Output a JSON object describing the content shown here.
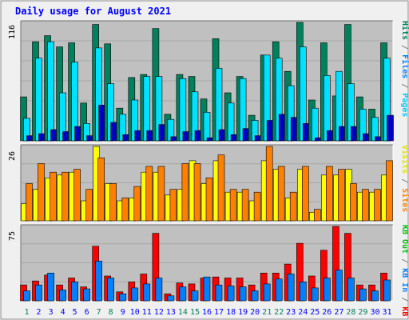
{
  "chart_data": {
    "type": "bar",
    "title": "Daily usage for August 2021",
    "days": [
      "1",
      "2",
      "3",
      "4",
      "5",
      "6",
      "7",
      "8",
      "9",
      "10",
      "11",
      "12",
      "13",
      "14",
      "15",
      "16",
      "17",
      "18",
      "19",
      "20",
      "21",
      "22",
      "23",
      "24",
      "25",
      "26",
      "27",
      "28",
      "29",
      "30",
      "31"
    ],
    "weekend_days": [
      "1",
      "7",
      "8",
      "14",
      "15",
      "21",
      "22",
      "28",
      "29"
    ],
    "panels": [
      {
        "id": "hits",
        "ymax": 116,
        "ymax_label": "116",
        "series": [
          {
            "name": "Hits",
            "color": "#00805c",
            "values": [
              43,
              97,
              103,
              92,
              96,
              37,
              114,
              95,
              32,
              62,
              65,
              110,
              26,
              65,
              63,
              41,
              100,
              47,
              63,
              25,
              84,
              97,
              68,
              116,
              40,
              96,
              44,
              114,
              43,
              31,
              96
            ]
          },
          {
            "name": "Files",
            "color": "#00e0ff",
            "values": [
              22,
              81,
              97,
              47,
              77,
              17,
              91,
              56,
              26,
              40,
              63,
              63,
              21,
              61,
              48,
              28,
              71,
              37,
              61,
              20,
              84,
              81,
              54,
              92,
              32,
              64,
              68,
              56,
              31,
              23,
              81
            ]
          },
          {
            "name": "Pages",
            "color": "#0000c0",
            "values": [
              5,
              7,
              11,
              9,
              14,
              5,
              35,
              18,
              6,
              10,
              10,
              16,
              4,
              9,
              10,
              3,
              11,
              6,
              12,
              5,
              20,
              26,
              23,
              17,
              3,
              10,
              14,
              14,
              7,
              4,
              25
            ]
          }
        ]
      },
      {
        "id": "visits",
        "ymax": 26,
        "ymax_label": "26",
        "series": [
          {
            "name": "Visits",
            "color": "#ffff00",
            "values": [
              6,
              11,
              15,
              16,
              17,
              7,
              26,
              13,
              7,
              8,
              17,
              17,
              9,
              11,
              21,
              13,
              21,
              10,
              10,
              7,
              21,
              18,
              8,
              18,
              3,
              16,
              16,
              18,
              10,
              10,
              16
            ]
          },
          {
            "name": "Sites",
            "color": "#ff8000",
            "values": [
              13,
              20,
              17,
              17,
              18,
              11,
              22,
              13,
              8,
              12,
              19,
              19,
              11,
              20,
              20,
              15,
              23,
              11,
              11,
              10,
              26,
              19,
              10,
              19,
              4,
              19,
              18,
              13,
              11,
              11,
              21
            ]
          }
        ]
      },
      {
        "id": "kbytes",
        "ymax": 75,
        "ymax_label": "75",
        "series": [
          {
            "name": "KB F",
            "color": "#ff0000",
            "values": [
              16,
              20,
              26,
              16,
              23,
              14,
              55,
              25,
              9,
              19,
              27,
              68,
              7,
              18,
              17,
              23,
              24,
              23,
              23,
              16,
              28,
              28,
              37,
              58,
              25,
              51,
              75,
              68,
              16,
              16,
              28
            ]
          },
          {
            "name": "KB In",
            "color": "#0080ff",
            "values": [
              10,
              16,
              28,
              11,
              19,
              12,
              40,
              23,
              7,
              13,
              17,
              23,
              5,
              14,
              10,
              24,
              16,
              15,
              14,
              10,
              17,
              22,
              27,
              19,
              13,
              23,
              31,
              23,
              12,
              10,
              21
            ]
          },
          {
            "name": "KB Out",
            "color": "#00c000",
            "values": [
              0,
              0,
              0,
              0,
              0,
              0,
              0,
              0,
              0,
              0,
              0,
              0,
              0,
              0,
              0,
              0,
              0,
              0,
              0,
              0,
              0,
              0,
              0,
              0,
              0,
              0,
              0,
              0,
              0,
              0,
              0
            ]
          }
        ]
      }
    ],
    "right_labels": [
      {
        "text": "Hits",
        "color": "#00805c"
      },
      {
        "text": " / ",
        "color": "#808080"
      },
      {
        "text": "Files",
        "color": "#0080ff"
      },
      {
        "text": " / ",
        "color": "#808080"
      },
      {
        "text": "Pages",
        "color": "#00c8ff"
      },
      {
        "text": "Visits",
        "color": "#e0e000"
      },
      {
        "text": " / ",
        "color": "#808080"
      },
      {
        "text": "Sites",
        "color": "#ff8000"
      },
      {
        "text": "KB Out",
        "color": "#00c000"
      },
      {
        "text": " / ",
        "color": "#808080"
      },
      {
        "text": "KB In",
        "color": "#0080ff"
      },
      {
        "text": " / ",
        "color": "#808080"
      },
      {
        "text": "KB F",
        "color": "#ff0000"
      }
    ],
    "colors": {
      "title": "#0000ff",
      "panel_bg": "#c0c0c0",
      "frame_bg": "#f0f0f0",
      "weekday": "#0000ff",
      "weekend": "#00805c"
    },
    "grid": true
  }
}
